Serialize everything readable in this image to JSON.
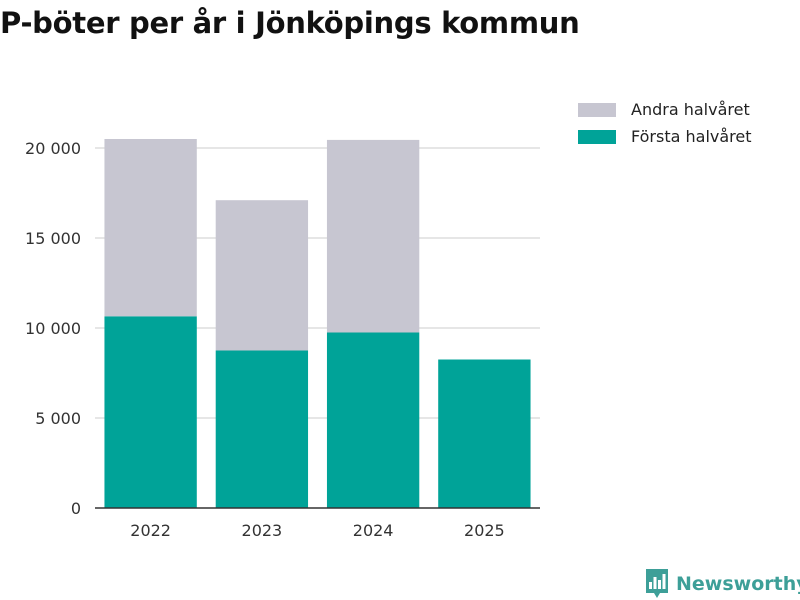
{
  "chart_data": {
    "type": "bar",
    "stacked": true,
    "title": "P-böter per år i Jönköpings kommun",
    "categories": [
      "2022",
      "2023",
      "2024",
      "2025"
    ],
    "series": [
      {
        "name": "Första halvåret",
        "values": [
          10650,
          8750,
          9750,
          8250
        ],
        "color": "#00a398"
      },
      {
        "name": "Andra halvåret",
        "values": [
          9850,
          8350,
          10700,
          null
        ],
        "color": "#c7c6d1"
      }
    ],
    "ylim": [
      0,
      22000
    ],
    "yticks": [
      0,
      5000,
      10000,
      15000,
      20000
    ],
    "ytick_labels": [
      "0",
      "5 000",
      "10 000",
      "15 000",
      "20 000"
    ],
    "grid": true,
    "legend_position": "top-right",
    "legend_order": [
      "Andra halvåret",
      "Första halvåret"
    ]
  },
  "brand": {
    "name": "Newsworthy",
    "color": "#3d9f98",
    "icon": "bar-chart-shield-icon"
  }
}
